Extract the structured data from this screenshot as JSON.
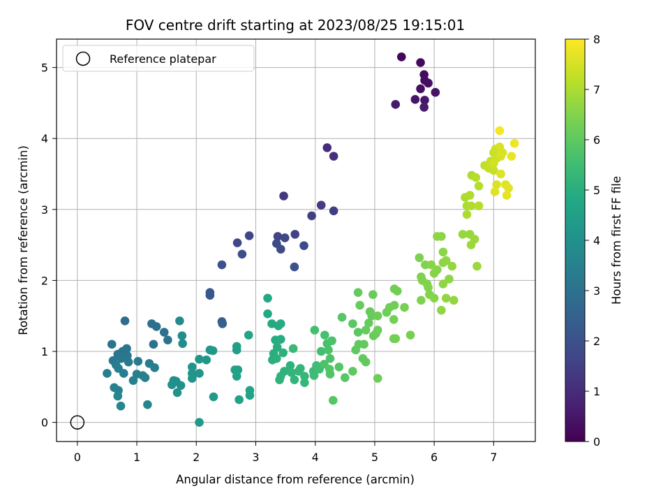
{
  "chart_data": {
    "type": "scatter",
    "title": "FOV centre drift starting at 2023/08/25 19:15:01",
    "xlabel": "Angular distance from reference (arcmin)",
    "ylabel": "Rotation from reference (arcmin)",
    "xlim": [
      -0.35,
      7.7
    ],
    "ylim": [
      -0.27,
      5.4
    ],
    "xticks": [
      0,
      1,
      2,
      3,
      4,
      5,
      6,
      7
    ],
    "yticks": [
      0,
      1,
      2,
      3,
      4,
      5
    ],
    "grid": true,
    "legend": {
      "placement": "top-left",
      "entries": [
        "Reference platepar"
      ]
    },
    "reference_point": {
      "x": 0,
      "y": 0
    },
    "colorbar": {
      "label": "Hours from first FF file",
      "range": [
        0,
        8
      ],
      "ticks": [
        0,
        1,
        2,
        3,
        4,
        5,
        6,
        7,
        8
      ],
      "colormap": "viridis"
    },
    "points": [
      {
        "x": 5.45,
        "y": 5.15,
        "c": 0.1
      },
      {
        "x": 5.77,
        "y": 5.07,
        "c": 0.2
      },
      {
        "x": 5.83,
        "y": 4.9,
        "c": 0.25
      },
      {
        "x": 5.84,
        "y": 4.82,
        "c": 0.3
      },
      {
        "x": 5.9,
        "y": 4.78,
        "c": 0.3
      },
      {
        "x": 5.77,
        "y": 4.7,
        "c": 0.35
      },
      {
        "x": 6.02,
        "y": 4.65,
        "c": 0.4
      },
      {
        "x": 5.68,
        "y": 4.55,
        "c": 0.45
      },
      {
        "x": 5.84,
        "y": 4.54,
        "c": 0.5
      },
      {
        "x": 5.35,
        "y": 4.48,
        "c": 0.55
      },
      {
        "x": 5.83,
        "y": 4.44,
        "c": 0.6
      },
      {
        "x": 4.2,
        "y": 3.87,
        "c": 1.0
      },
      {
        "x": 4.31,
        "y": 3.75,
        "c": 1.05
      },
      {
        "x": 3.47,
        "y": 3.19,
        "c": 1.3
      },
      {
        "x": 4.1,
        "y": 3.06,
        "c": 1.4
      },
      {
        "x": 4.31,
        "y": 2.98,
        "c": 1.45
      },
      {
        "x": 3.94,
        "y": 2.91,
        "c": 1.5
      },
      {
        "x": 3.66,
        "y": 2.65,
        "c": 1.55
      },
      {
        "x": 3.37,
        "y": 2.62,
        "c": 1.6
      },
      {
        "x": 3.49,
        "y": 2.6,
        "c": 1.65
      },
      {
        "x": 2.89,
        "y": 2.63,
        "c": 1.7
      },
      {
        "x": 2.69,
        "y": 2.53,
        "c": 1.75
      },
      {
        "x": 3.35,
        "y": 2.52,
        "c": 1.8
      },
      {
        "x": 3.81,
        "y": 2.49,
        "c": 1.8
      },
      {
        "x": 3.42,
        "y": 2.44,
        "c": 1.85
      },
      {
        "x": 2.77,
        "y": 2.37,
        "c": 1.9
      },
      {
        "x": 2.43,
        "y": 2.22,
        "c": 2.0
      },
      {
        "x": 3.65,
        "y": 2.19,
        "c": 2.0
      },
      {
        "x": 2.23,
        "y": 1.83,
        "c": 2.2
      },
      {
        "x": 2.23,
        "y": 1.79,
        "c": 2.2
      },
      {
        "x": 2.43,
        "y": 1.42,
        "c": 2.4
      },
      {
        "x": 2.44,
        "y": 1.39,
        "c": 2.45
      },
      {
        "x": 0.8,
        "y": 1.43,
        "c": 2.8
      },
      {
        "x": 1.25,
        "y": 1.39,
        "c": 2.9
      },
      {
        "x": 1.33,
        "y": 1.35,
        "c": 2.9
      },
      {
        "x": 1.46,
        "y": 1.27,
        "c": 2.95
      },
      {
        "x": 1.52,
        "y": 1.16,
        "c": 3.0
      },
      {
        "x": 1.28,
        "y": 1.1,
        "c": 3.0
      },
      {
        "x": 0.58,
        "y": 1.1,
        "c": 3.05
      },
      {
        "x": 0.83,
        "y": 1.04,
        "c": 3.1
      },
      {
        "x": 0.76,
        "y": 1.0,
        "c": 3.1
      },
      {
        "x": 0.68,
        "y": 0.96,
        "c": 3.15
      },
      {
        "x": 0.84,
        "y": 0.94,
        "c": 3.15
      },
      {
        "x": 0.74,
        "y": 0.9,
        "c": 3.2
      },
      {
        "x": 0.6,
        "y": 0.87,
        "c": 3.2
      },
      {
        "x": 0.86,
        "y": 0.85,
        "c": 3.25
      },
      {
        "x": 1.02,
        "y": 0.86,
        "c": 3.25
      },
      {
        "x": 0.65,
        "y": 0.81,
        "c": 3.3
      },
      {
        "x": 1.21,
        "y": 0.83,
        "c": 3.3
      },
      {
        "x": 1.3,
        "y": 0.77,
        "c": 3.35
      },
      {
        "x": 0.69,
        "y": 0.76,
        "c": 3.35
      },
      {
        "x": 0.5,
        "y": 0.69,
        "c": 3.4
      },
      {
        "x": 0.78,
        "y": 0.69,
        "c": 3.4
      },
      {
        "x": 1.0,
        "y": 0.68,
        "c": 3.45
      },
      {
        "x": 1.1,
        "y": 0.66,
        "c": 3.45
      },
      {
        "x": 1.14,
        "y": 0.63,
        "c": 3.5
      },
      {
        "x": 0.94,
        "y": 0.59,
        "c": 3.5
      },
      {
        "x": 0.62,
        "y": 0.49,
        "c": 3.55
      },
      {
        "x": 0.69,
        "y": 0.45,
        "c": 3.55
      },
      {
        "x": 0.68,
        "y": 0.37,
        "c": 3.6
      },
      {
        "x": 0.73,
        "y": 0.23,
        "c": 3.6
      },
      {
        "x": 1.18,
        "y": 0.25,
        "c": 3.65
      },
      {
        "x": 1.72,
        "y": 1.43,
        "c": 3.8
      },
      {
        "x": 1.76,
        "y": 1.22,
        "c": 3.85
      },
      {
        "x": 1.77,
        "y": 1.11,
        "c": 3.9
      },
      {
        "x": 1.62,
        "y": 0.59,
        "c": 3.95
      },
      {
        "x": 1.66,
        "y": 0.58,
        "c": 3.95
      },
      {
        "x": 1.59,
        "y": 0.53,
        "c": 4.0
      },
      {
        "x": 1.74,
        "y": 0.52,
        "c": 4.0
      },
      {
        "x": 1.68,
        "y": 0.42,
        "c": 4.05
      },
      {
        "x": 1.93,
        "y": 0.78,
        "c": 4.1
      },
      {
        "x": 1.93,
        "y": 0.69,
        "c": 4.1
      },
      {
        "x": 1.93,
        "y": 0.62,
        "c": 4.15
      },
      {
        "x": 2.05,
        "y": 0.69,
        "c": 4.15
      },
      {
        "x": 2.05,
        "y": 0.89,
        "c": 4.2
      },
      {
        "x": 2.17,
        "y": 0.88,
        "c": 4.2
      },
      {
        "x": 2.23,
        "y": 1.02,
        "c": 4.25
      },
      {
        "x": 2.28,
        "y": 1.01,
        "c": 4.25
      },
      {
        "x": 2.29,
        "y": 0.36,
        "c": 4.3
      },
      {
        "x": 2.05,
        "y": 0.0,
        "c": 4.35
      },
      {
        "x": 2.68,
        "y": 1.07,
        "c": 4.5
      },
      {
        "x": 2.68,
        "y": 1.02,
        "c": 4.5
      },
      {
        "x": 2.65,
        "y": 0.74,
        "c": 4.55
      },
      {
        "x": 2.7,
        "y": 0.74,
        "c": 4.55
      },
      {
        "x": 2.68,
        "y": 0.65,
        "c": 4.6
      },
      {
        "x": 2.72,
        "y": 0.32,
        "c": 4.6
      },
      {
        "x": 2.9,
        "y": 0.45,
        "c": 4.65
      },
      {
        "x": 2.9,
        "y": 0.38,
        "c": 4.65
      },
      {
        "x": 2.88,
        "y": 1.23,
        "c": 4.7
      },
      {
        "x": 3.2,
        "y": 1.75,
        "c": 4.8
      },
      {
        "x": 3.2,
        "y": 1.53,
        "c": 4.8
      },
      {
        "x": 3.27,
        "y": 1.39,
        "c": 4.85
      },
      {
        "x": 3.38,
        "y": 1.36,
        "c": 4.85
      },
      {
        "x": 3.42,
        "y": 1.39,
        "c": 4.9
      },
      {
        "x": 3.33,
        "y": 1.16,
        "c": 4.9
      },
      {
        "x": 3.42,
        "y": 1.17,
        "c": 4.95
      },
      {
        "x": 3.36,
        "y": 1.06,
        "c": 4.95
      },
      {
        "x": 3.3,
        "y": 0.97,
        "c": 5.0
      },
      {
        "x": 3.28,
        "y": 0.88,
        "c": 5.0
      },
      {
        "x": 3.46,
        "y": 0.98,
        "c": 5.05
      },
      {
        "x": 3.35,
        "y": 0.9,
        "c": 5.05
      },
      {
        "x": 3.58,
        "y": 0.8,
        "c": 5.1
      },
      {
        "x": 3.48,
        "y": 0.72,
        "c": 5.1
      },
      {
        "x": 3.42,
        "y": 0.65,
        "c": 5.15
      },
      {
        "x": 3.4,
        "y": 0.6,
        "c": 5.15
      },
      {
        "x": 3.6,
        "y": 0.7,
        "c": 5.2
      },
      {
        "x": 3.65,
        "y": 0.6,
        "c": 5.2
      },
      {
        "x": 3.72,
        "y": 0.72,
        "c": 5.25
      },
      {
        "x": 3.75,
        "y": 0.76,
        "c": 5.25
      },
      {
        "x": 3.82,
        "y": 0.56,
        "c": 5.3
      },
      {
        "x": 3.82,
        "y": 0.65,
        "c": 5.3
      },
      {
        "x": 3.63,
        "y": 1.04,
        "c": 5.35
      },
      {
        "x": 3.97,
        "y": 0.72,
        "c": 5.4
      },
      {
        "x": 4.02,
        "y": 0.8,
        "c": 5.45
      },
      {
        "x": 3.98,
        "y": 0.66,
        "c": 5.45
      },
      {
        "x": 4.07,
        "y": 0.75,
        "c": 5.5
      },
      {
        "x": 4.1,
        "y": 1.0,
        "c": 5.55
      },
      {
        "x": 3.99,
        "y": 1.3,
        "c": 5.55
      },
      {
        "x": 4.16,
        "y": 1.23,
        "c": 5.65
      },
      {
        "x": 4.2,
        "y": 1.11,
        "c": 5.65
      },
      {
        "x": 4.28,
        "y": 1.15,
        "c": 5.7
      },
      {
        "x": 4.22,
        "y": 1.02,
        "c": 5.7
      },
      {
        "x": 4.25,
        "y": 0.9,
        "c": 5.75
      },
      {
        "x": 4.15,
        "y": 0.82,
        "c": 5.75
      },
      {
        "x": 4.24,
        "y": 0.75,
        "c": 5.8
      },
      {
        "x": 4.25,
        "y": 0.68,
        "c": 5.8
      },
      {
        "x": 4.4,
        "y": 0.78,
        "c": 5.85
      },
      {
        "x": 4.3,
        "y": 0.31,
        "c": 5.85
      },
      {
        "x": 4.5,
        "y": 0.63,
        "c": 5.9
      },
      {
        "x": 4.45,
        "y": 1.48,
        "c": 5.9
      },
      {
        "x": 4.63,
        "y": 1.39,
        "c": 5.95
      },
      {
        "x": 4.72,
        "y": 1.27,
        "c": 5.95
      },
      {
        "x": 4.68,
        "y": 1.02,
        "c": 6.0
      },
      {
        "x": 4.63,
        "y": 0.72,
        "c": 6.0
      },
      {
        "x": 4.73,
        "y": 1.1,
        "c": 6.0
      },
      {
        "x": 4.8,
        "y": 0.9,
        "c": 6.05
      },
      {
        "x": 4.85,
        "y": 0.85,
        "c": 6.05
      },
      {
        "x": 4.82,
        "y": 1.1,
        "c": 6.05
      },
      {
        "x": 4.85,
        "y": 1.3,
        "c": 6.1
      },
      {
        "x": 4.9,
        "y": 1.4,
        "c": 6.1
      },
      {
        "x": 4.92,
        "y": 1.56,
        "c": 6.1
      },
      {
        "x": 4.72,
        "y": 1.83,
        "c": 6.1
      },
      {
        "x": 4.75,
        "y": 1.65,
        "c": 6.1
      },
      {
        "x": 4.97,
        "y": 1.8,
        "c": 6.15
      },
      {
        "x": 4.95,
        "y": 1.5,
        "c": 6.15
      },
      {
        "x": 4.98,
        "y": 1.22,
        "c": 6.15
      },
      {
        "x": 5.02,
        "y": 1.25,
        "c": 6.15
      },
      {
        "x": 5.05,
        "y": 1.3,
        "c": 6.2
      },
      {
        "x": 5.05,
        "y": 1.5,
        "c": 6.2
      },
      {
        "x": 5.05,
        "y": 0.62,
        "c": 6.2
      },
      {
        "x": 5.2,
        "y": 1.55,
        "c": 6.2
      },
      {
        "x": 5.25,
        "y": 1.62,
        "c": 6.25
      },
      {
        "x": 5.33,
        "y": 1.65,
        "c": 6.25
      },
      {
        "x": 5.33,
        "y": 1.88,
        "c": 6.25
      },
      {
        "x": 5.38,
        "y": 1.85,
        "c": 6.25
      },
      {
        "x": 5.32,
        "y": 1.45,
        "c": 6.3
      },
      {
        "x": 5.35,
        "y": 1.18,
        "c": 6.3
      },
      {
        "x": 5.32,
        "y": 1.18,
        "c": 6.3
      },
      {
        "x": 5.5,
        "y": 1.62,
        "c": 6.35
      },
      {
        "x": 5.6,
        "y": 1.23,
        "c": 6.35
      },
      {
        "x": 5.75,
        "y": 2.32,
        "c": 6.4
      },
      {
        "x": 5.78,
        "y": 2.05,
        "c": 6.45
      },
      {
        "x": 5.8,
        "y": 2.0,
        "c": 6.45
      },
      {
        "x": 5.78,
        "y": 1.72,
        "c": 6.45
      },
      {
        "x": 5.85,
        "y": 2.22,
        "c": 6.5
      },
      {
        "x": 5.88,
        "y": 1.95,
        "c": 6.5
      },
      {
        "x": 5.9,
        "y": 1.9,
        "c": 6.5
      },
      {
        "x": 5.92,
        "y": 1.8,
        "c": 6.5
      },
      {
        "x": 5.95,
        "y": 2.22,
        "c": 6.55
      },
      {
        "x": 6.0,
        "y": 2.1,
        "c": 6.55
      },
      {
        "x": 6.0,
        "y": 1.75,
        "c": 6.55
      },
      {
        "x": 6.05,
        "y": 2.15,
        "c": 6.55
      },
      {
        "x": 6.05,
        "y": 2.62,
        "c": 6.6
      },
      {
        "x": 6.12,
        "y": 2.62,
        "c": 6.6
      },
      {
        "x": 6.15,
        "y": 2.4,
        "c": 6.6
      },
      {
        "x": 6.15,
        "y": 2.25,
        "c": 6.6
      },
      {
        "x": 6.15,
        "y": 1.95,
        "c": 6.65
      },
      {
        "x": 6.12,
        "y": 1.58,
        "c": 6.65
      },
      {
        "x": 6.2,
        "y": 2.28,
        "c": 6.65
      },
      {
        "x": 6.25,
        "y": 2.02,
        "c": 6.65
      },
      {
        "x": 6.2,
        "y": 1.75,
        "c": 6.7
      },
      {
        "x": 6.3,
        "y": 2.2,
        "c": 6.7
      },
      {
        "x": 6.33,
        "y": 1.72,
        "c": 6.7
      },
      {
        "x": 6.48,
        "y": 2.65,
        "c": 6.75
      },
      {
        "x": 6.6,
        "y": 2.65,
        "c": 6.75
      },
      {
        "x": 6.62,
        "y": 2.5,
        "c": 6.8
      },
      {
        "x": 6.68,
        "y": 2.58,
        "c": 6.8
      },
      {
        "x": 6.72,
        "y": 2.2,
        "c": 6.8
      },
      {
        "x": 6.52,
        "y": 3.17,
        "c": 7.0
      },
      {
        "x": 6.55,
        "y": 3.05,
        "c": 7.0
      },
      {
        "x": 6.55,
        "y": 2.93,
        "c": 7.0
      },
      {
        "x": 6.6,
        "y": 3.2,
        "c": 7.05
      },
      {
        "x": 6.62,
        "y": 3.05,
        "c": 7.05
      },
      {
        "x": 6.63,
        "y": 3.48,
        "c": 7.05
      },
      {
        "x": 6.7,
        "y": 3.45,
        "c": 7.1
      },
      {
        "x": 6.75,
        "y": 3.33,
        "c": 7.1
      },
      {
        "x": 6.75,
        "y": 3.05,
        "c": 7.1
      },
      {
        "x": 6.85,
        "y": 3.62,
        "c": 7.2
      },
      {
        "x": 6.92,
        "y": 3.58,
        "c": 7.25
      },
      {
        "x": 6.95,
        "y": 3.68,
        "c": 7.3
      },
      {
        "x": 7.0,
        "y": 3.55,
        "c": 7.3
      },
      {
        "x": 7.0,
        "y": 3.8,
        "c": 7.35
      },
      {
        "x": 7.03,
        "y": 3.85,
        "c": 7.4
      },
      {
        "x": 7.05,
        "y": 3.72,
        "c": 7.4
      },
      {
        "x": 7.0,
        "y": 3.65,
        "c": 7.45
      },
      {
        "x": 7.1,
        "y": 3.88,
        "c": 7.5
      },
      {
        "x": 7.12,
        "y": 3.75,
        "c": 7.5
      },
      {
        "x": 7.15,
        "y": 3.8,
        "c": 7.55
      },
      {
        "x": 7.05,
        "y": 3.35,
        "c": 7.55
      },
      {
        "x": 7.02,
        "y": 3.25,
        "c": 7.6
      },
      {
        "x": 7.12,
        "y": 3.5,
        "c": 7.6
      },
      {
        "x": 7.2,
        "y": 3.35,
        "c": 7.65
      },
      {
        "x": 7.25,
        "y": 3.3,
        "c": 7.65
      },
      {
        "x": 7.22,
        "y": 3.2,
        "c": 7.7
      },
      {
        "x": 7.3,
        "y": 3.75,
        "c": 7.75
      },
      {
        "x": 7.35,
        "y": 3.93,
        "c": 7.8
      },
      {
        "x": 7.1,
        "y": 4.11,
        "c": 7.9
      }
    ]
  }
}
